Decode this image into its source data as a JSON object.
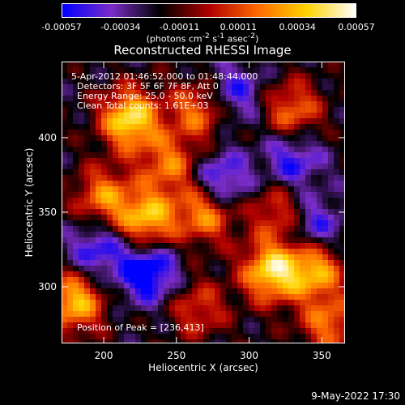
{
  "colorbar": {
    "ticks": [
      "-0.00057",
      "-0.00034",
      "-0.00011",
      "0.00011",
      "0.00034",
      "0.00057"
    ],
    "range": [
      -0.00057,
      0.00057
    ],
    "unit_base": "(photons cm",
    "unit_exp1": "-2",
    "unit_mid": " s",
    "unit_exp2": "-1",
    "unit_mid2": " asec",
    "unit_exp3": "-2",
    "unit_end": ")"
  },
  "title": "Reconstructed RHESSI Image",
  "annotations": {
    "time": "5-Apr-2012 01:46:52.000 to 01:48:44.000",
    "detectors": "Detectors: 3F 5F 6F 7F 8F, Att 0",
    "energy": "Energy Range: 25.0 - 50.0 keV",
    "clean": "Clean     Total counts: 1.61E+03",
    "peak": "Position of Peak = [236,413]"
  },
  "axes": {
    "xlabel": "Heliocentric X (arcsec)",
    "ylabel": "Heliocentric Y (arcsec)",
    "xticks": [
      "200",
      "250",
      "300",
      "350"
    ],
    "yticks": [
      "300",
      "350",
      "400"
    ]
  },
  "footer": "9-May-2022 17:30",
  "chart_data": {
    "type": "heatmap",
    "title": "Reconstructed RHESSI Image",
    "xlabel": "Heliocentric X (arcsec)",
    "ylabel": "Heliocentric Y (arcsec)",
    "xlim": [
      171,
      366
    ],
    "ylim": [
      262,
      451
    ],
    "xticks": [
      200,
      250,
      300,
      350
    ],
    "yticks": [
      300,
      350,
      400
    ],
    "color_range": [
      -0.00057,
      0.00057
    ],
    "colormap": [
      "#0000ff",
      "#7a2cc8",
      "#000000",
      "#b00000",
      "#ff6a00",
      "#ffd400",
      "#ffffff"
    ],
    "peak": [
      236,
      413
    ],
    "bright_regions": [
      {
        "x": 218,
        "y": 412,
        "level": 1.0
      },
      {
        "x": 265,
        "y": 418,
        "level": 0.6
      },
      {
        "x": 330,
        "y": 418,
        "level": 0.6
      },
      {
        "x": 245,
        "y": 382,
        "level": 0.6
      },
      {
        "x": 200,
        "y": 360,
        "level": 0.65
      },
      {
        "x": 230,
        "y": 345,
        "level": 0.85
      },
      {
        "x": 270,
        "y": 350,
        "level": 0.75
      },
      {
        "x": 320,
        "y": 350,
        "level": 0.5
      },
      {
        "x": 315,
        "y": 310,
        "level": 0.95
      },
      {
        "x": 345,
        "y": 312,
        "level": 0.8
      },
      {
        "x": 180,
        "y": 290,
        "level": 0.85
      },
      {
        "x": 355,
        "y": 275,
        "level": 0.6
      },
      {
        "x": 265,
        "y": 285,
        "level": 0.45
      }
    ],
    "dark_regions": [
      {
        "x": 230,
        "y": 310,
        "level": -0.75
      },
      {
        "x": 280,
        "y": 370,
        "level": -0.6
      },
      {
        "x": 330,
        "y": 385,
        "level": -0.5
      },
      {
        "x": 195,
        "y": 325,
        "level": -0.5
      },
      {
        "x": 290,
        "y": 430,
        "level": -0.45
      },
      {
        "x": 345,
        "y": 340,
        "level": -0.5
      }
    ]
  }
}
